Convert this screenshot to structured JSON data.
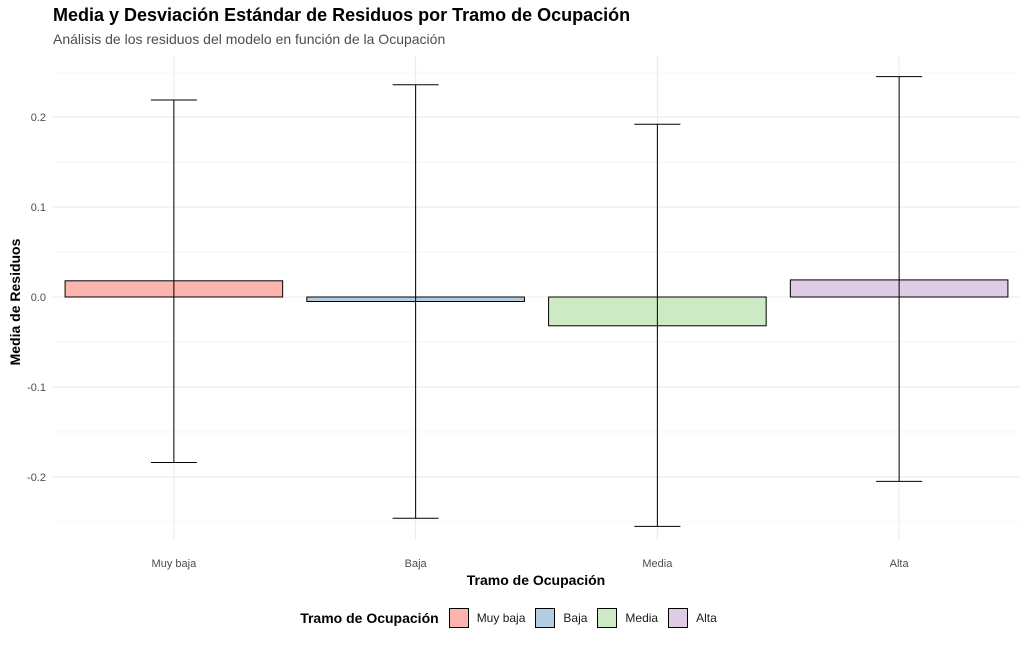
{
  "chart_data": {
    "type": "bar",
    "title": "Media y Desviación Estándar de Residuos por Tramo de Ocupación",
    "subtitle": "Análisis de los residuos del modelo en función de la Ocupación",
    "xlabel": "Tramo de Ocupación",
    "ylabel": "Media de Residuos",
    "categories": [
      "Muy baja",
      "Baja",
      "Media",
      "Alta"
    ],
    "values": [
      0.018,
      -0.005,
      -0.032,
      0.019
    ],
    "error_upper": [
      0.219,
      0.236,
      0.192,
      0.245
    ],
    "error_lower": [
      -0.184,
      -0.246,
      -0.255,
      -0.205
    ],
    "colors": [
      "#fbb4ae",
      "#b3cde3",
      "#ccebc5",
      "#decbe4"
    ],
    "ylim": [
      -0.25,
      0.25
    ],
    "y_ticks": [
      -0.2,
      -0.1,
      0.0,
      0.1,
      0.2
    ],
    "y_tick_labels": [
      "-0.2",
      "-0.1",
      "0.0",
      "0.1",
      "0.2"
    ],
    "grid": true,
    "legend": {
      "title": "Tramo de Ocupación",
      "position": "bottom",
      "entries": [
        "Muy baja",
        "Baja",
        "Media",
        "Alta"
      ]
    }
  }
}
